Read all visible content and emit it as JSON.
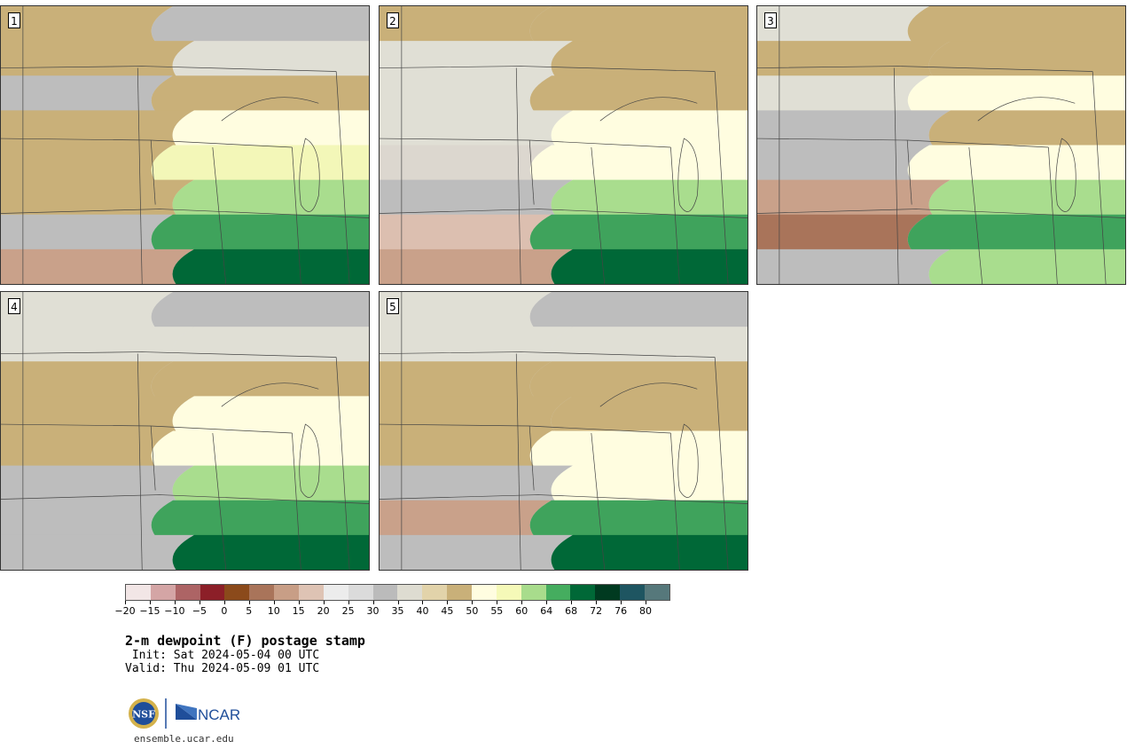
{
  "panels": [
    {
      "label": "1",
      "left": [
        "#c9b079",
        "#c9b079",
        "#bdbdbd",
        "#c9b079",
        "#c9b079",
        "#c9b079",
        "#bdbdbd",
        "#c9a18a"
      ],
      "right": [
        "#bdbdbd",
        "#e0dfd5",
        "#c9b079",
        "#fffde0",
        "#f3f7b8",
        "#a9dd8e",
        "#3fa35c",
        "#006837"
      ]
    },
    {
      "label": "2",
      "left": [
        "#c9b079",
        "#e0dfd5",
        "#e0dfd5",
        "#e0dfd5",
        "#dcd7cf",
        "#bdbdbd",
        "#dcbfb0",
        "#c9a18a"
      ],
      "right": [
        "#c9b079",
        "#c9b079",
        "#c9b079",
        "#fffde0",
        "#fffde0",
        "#a9dd8e",
        "#3fa35c",
        "#006837"
      ]
    },
    {
      "label": "3",
      "left": [
        "#e0dfd5",
        "#c9b079",
        "#e0dfd5",
        "#bdbdbd",
        "#bdbdbd",
        "#c9a18a",
        "#a9745a",
        "#bdbdbd"
      ],
      "right": [
        "#c9b079",
        "#c9b079",
        "#fffde0",
        "#c9b079",
        "#fffde0",
        "#a9dd8e",
        "#3fa35c",
        "#a9dd8e"
      ]
    },
    {
      "label": "4",
      "left": [
        "#e0dfd5",
        "#e0dfd5",
        "#c9b079",
        "#c9b079",
        "#c9b079",
        "#bdbdbd",
        "#bdbdbd",
        "#bdbdbd"
      ],
      "right": [
        "#bdbdbd",
        "#e0dfd5",
        "#c9b079",
        "#fffde0",
        "#fffde0",
        "#a9dd8e",
        "#3fa35c",
        "#006837"
      ]
    },
    {
      "label": "5",
      "left": [
        "#e0dfd5",
        "#e0dfd5",
        "#c9b079",
        "#c9b079",
        "#c9b079",
        "#bdbdbd",
        "#c9a18a",
        "#bdbdbd"
      ],
      "right": [
        "#bdbdbd",
        "#e0dfd5",
        "#c9b079",
        "#c9b079",
        "#fffde0",
        "#fffde0",
        "#3fa35c",
        "#006837"
      ]
    }
  ],
  "colorbar": {
    "colors": [
      "#f2e6e6",
      "#d4a5a5",
      "#ad6465",
      "#8c1f28",
      "#8b4a1b",
      "#a9745a",
      "#c89e86",
      "#dec3b4",
      "#ececec",
      "#dbdbdb",
      "#bbbbbb",
      "#dedcd1",
      "#e2d3aa",
      "#c9b079",
      "#fffde0",
      "#f5f9b8",
      "#a8dc8c",
      "#45ad5f",
      "#006837",
      "#003a20",
      "#1e5561",
      "#56787b"
    ],
    "ticks": [
      "−20",
      "−15",
      "−10",
      "−5",
      "0",
      "5",
      "10",
      "15",
      "20",
      "25",
      "30",
      "35",
      "40",
      "45",
      "50",
      "55",
      "60",
      "64",
      "68",
      "72",
      "76",
      "80"
    ]
  },
  "title": "2-m dewpoint (F) postage stamp",
  "init": " Init: Sat 2024-05-04 00 UTC",
  "valid": "Valid: Thu 2024-05-09 01 UTC",
  "logos": {
    "nsf": "NSF",
    "ncar": "NCAR"
  },
  "website": "ensemble.ucar.edu"
}
